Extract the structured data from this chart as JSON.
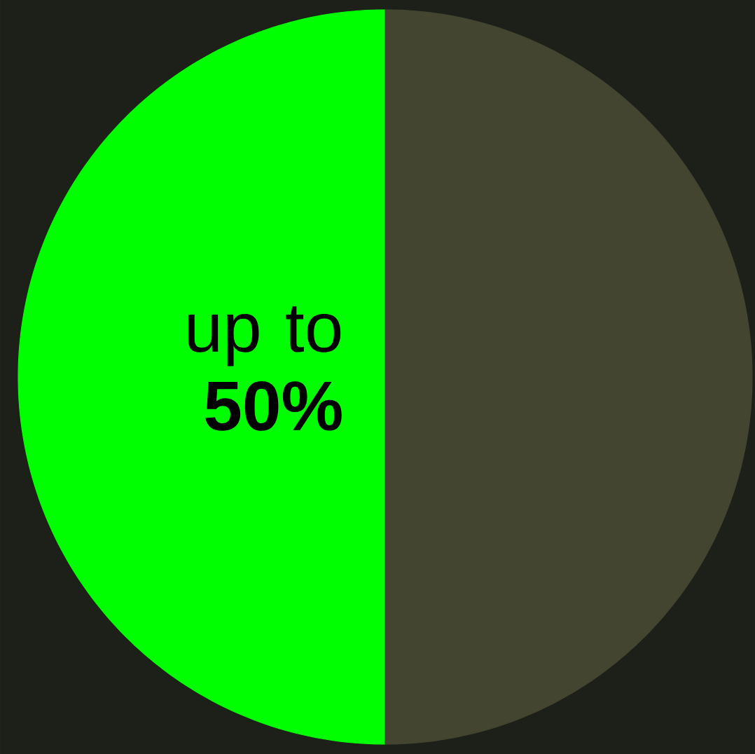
{
  "chart_data": {
    "type": "pie",
    "categories": [
      null,
      null
    ],
    "values": [
      50,
      50
    ],
    "colors": [
      "#00ff00",
      "#434530"
    ],
    "value_labels": [
      "up to **50%**",
      null
    ]
  }
}
